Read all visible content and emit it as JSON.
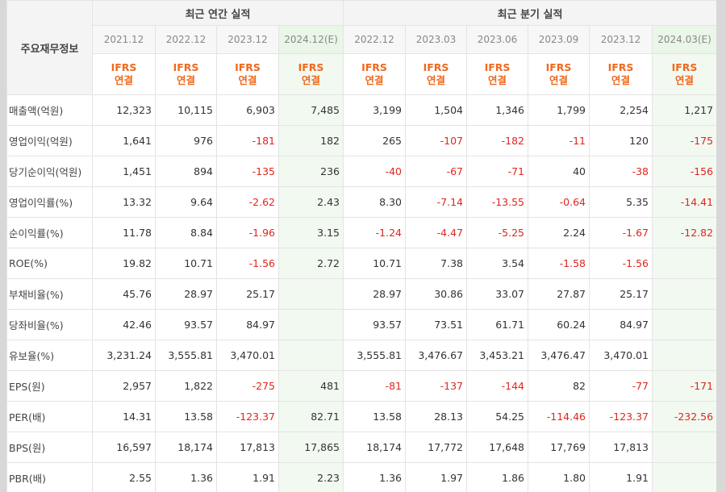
{
  "header": {
    "label_column": "주요재무정보",
    "annual_group": "최근 연간 실적",
    "quarterly_group": "최근 분기 실적",
    "annual_periods": [
      "2021.12",
      "2022.12",
      "2023.12",
      "2024.12(E)"
    ],
    "quarterly_periods": [
      "2022.12",
      "2023.03",
      "2023.06",
      "2023.09",
      "2023.12",
      "2024.03(E)"
    ],
    "basis_line1": "IFRS",
    "basis_line2": "연결"
  },
  "rows": [
    {
      "label": "매출액(억원)",
      "values": [
        "12,323",
        "10,115",
        "6,903",
        "7,485",
        "3,199",
        "1,504",
        "1,346",
        "1,799",
        "2,254",
        "1,217"
      ]
    },
    {
      "label": "영업이익(억원)",
      "values": [
        "1,641",
        "976",
        "-181",
        "182",
        "265",
        "-107",
        "-182",
        "-11",
        "120",
        "-175"
      ]
    },
    {
      "label": "당기순이익(억원)",
      "values": [
        "1,451",
        "894",
        "-135",
        "236",
        "-40",
        "-67",
        "-71",
        "40",
        "-38",
        "-156"
      ]
    },
    {
      "label": "영업이익률(%)",
      "values": [
        "13.32",
        "9.64",
        "-2.62",
        "2.43",
        "8.30",
        "-7.14",
        "-13.55",
        "-0.64",
        "5.35",
        "-14.41"
      ]
    },
    {
      "label": "순이익률(%)",
      "values": [
        "11.78",
        "8.84",
        "-1.96",
        "3.15",
        "-1.24",
        "-4.47",
        "-5.25",
        "2.24",
        "-1.67",
        "-12.82"
      ]
    },
    {
      "label": "ROE(%)",
      "values": [
        "19.82",
        "10.71",
        "-1.56",
        "2.72",
        "10.71",
        "7.38",
        "3.54",
        "-1.58",
        "-1.56",
        ""
      ]
    },
    {
      "label": "부채비율(%)",
      "values": [
        "45.76",
        "28.97",
        "25.17",
        "",
        "28.97",
        "30.86",
        "33.07",
        "27.87",
        "25.17",
        ""
      ]
    },
    {
      "label": "당좌비율(%)",
      "values": [
        "42.46",
        "93.57",
        "84.97",
        "",
        "93.57",
        "73.51",
        "61.71",
        "60.24",
        "84.97",
        ""
      ]
    },
    {
      "label": "유보율(%)",
      "values": [
        "3,231.24",
        "3,555.81",
        "3,470.01",
        "",
        "3,555.81",
        "3,476.67",
        "3,453.21",
        "3,476.47",
        "3,470.01",
        ""
      ]
    },
    {
      "label": "EPS(원)",
      "values": [
        "2,957",
        "1,822",
        "-275",
        "481",
        "-81",
        "-137",
        "-144",
        "82",
        "-77",
        "-171"
      ]
    },
    {
      "label": "PER(배)",
      "values": [
        "14.31",
        "13.58",
        "-123.37",
        "82.71",
        "13.58",
        "28.13",
        "54.25",
        "-114.46",
        "-123.37",
        "-232.56"
      ]
    },
    {
      "label": "BPS(원)",
      "values": [
        "16,597",
        "18,174",
        "17,813",
        "17,865",
        "18,174",
        "17,772",
        "17,648",
        "17,769",
        "17,813",
        ""
      ]
    },
    {
      "label": "PBR(배)",
      "values": [
        "2.55",
        "1.36",
        "1.91",
        "2.23",
        "1.36",
        "1.97",
        "1.86",
        "1.80",
        "1.91",
        ""
      ]
    }
  ],
  "colors": {
    "negative": "#e0261d",
    "basis": "#f0691c",
    "estimate_bg": "#f2f9f1"
  }
}
